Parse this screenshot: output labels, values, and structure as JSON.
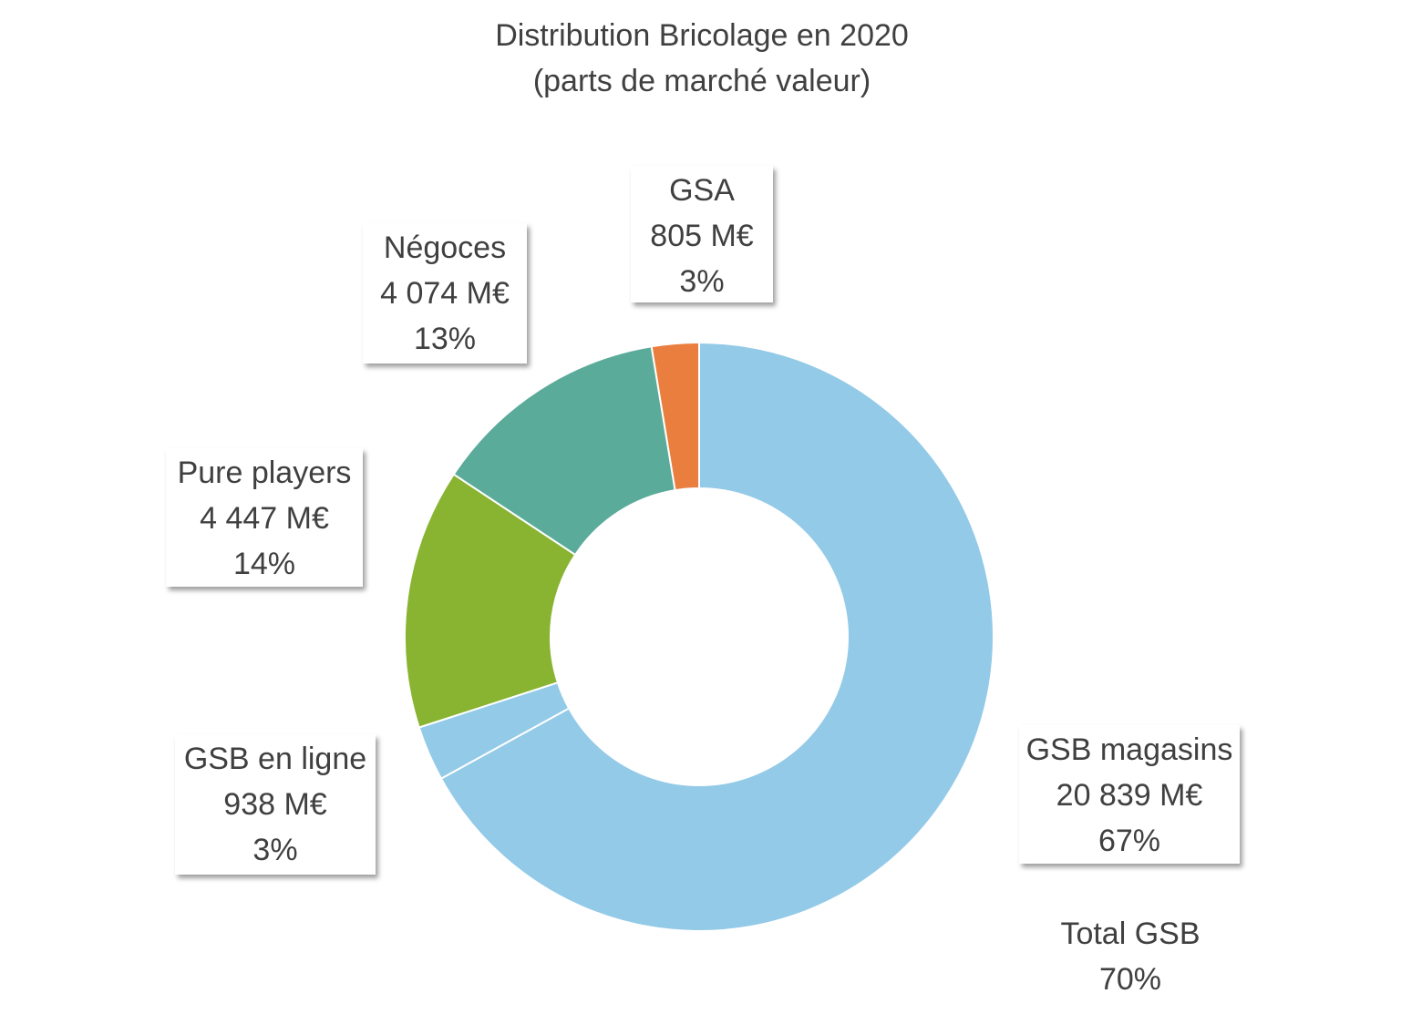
{
  "chart_data": {
    "type": "pie",
    "donut": true,
    "title": [
      "Distribution Bricolage en 2020",
      "(parts de marché valeur)"
    ],
    "unit": "M€",
    "slices": [
      {
        "id": "gsb-magasins",
        "name": "GSB magasins",
        "value": 20839,
        "value_label": "20 839  M€",
        "percent_label": "67%",
        "color": "#93CAE8"
      },
      {
        "id": "gsb-en-ligne",
        "name": "GSB en ligne",
        "value": 938,
        "value_label": "938  M€",
        "percent_label": "3%",
        "color": "#93CAE8"
      },
      {
        "id": "pure-players",
        "name": "Pure players",
        "value": 4447,
        "value_label": "4 447  M€",
        "percent_label": "14%",
        "color": "#88B431"
      },
      {
        "id": "negoces",
        "name": "Négoces",
        "value": 4074,
        "value_label": "4 074  M€",
        "percent_label": "13%",
        "color": "#5BAB9A"
      },
      {
        "id": "gsa",
        "name": "GSA",
        "value": 805,
        "value_label": "805  M€",
        "percent_label": "3%",
        "color": "#EA7E3E"
      }
    ],
    "annotation": {
      "label": "Total GSB",
      "value": "70%"
    }
  }
}
